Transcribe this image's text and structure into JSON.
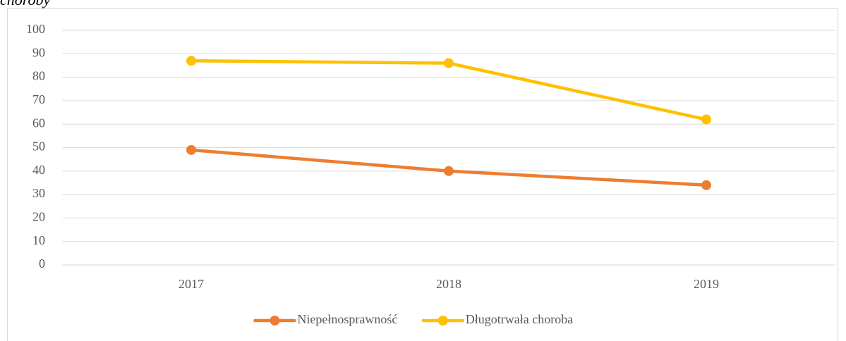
{
  "caption": "choroby",
  "chart_data": {
    "type": "line",
    "categories": [
      "2017",
      "2018",
      "2019"
    ],
    "series": [
      {
        "name": "Niepełnosprawność",
        "color": "#ed7d31",
        "values": [
          49,
          40,
          34
        ]
      },
      {
        "name": "Długotrwała choroba",
        "color": "#ffc000",
        "values": [
          87,
          86,
          62
        ]
      }
    ],
    "ylim": [
      0,
      100
    ],
    "yticks": [
      0,
      10,
      20,
      30,
      40,
      50,
      60,
      70,
      80,
      90,
      100
    ],
    "grid": true,
    "legend": "bottom"
  }
}
